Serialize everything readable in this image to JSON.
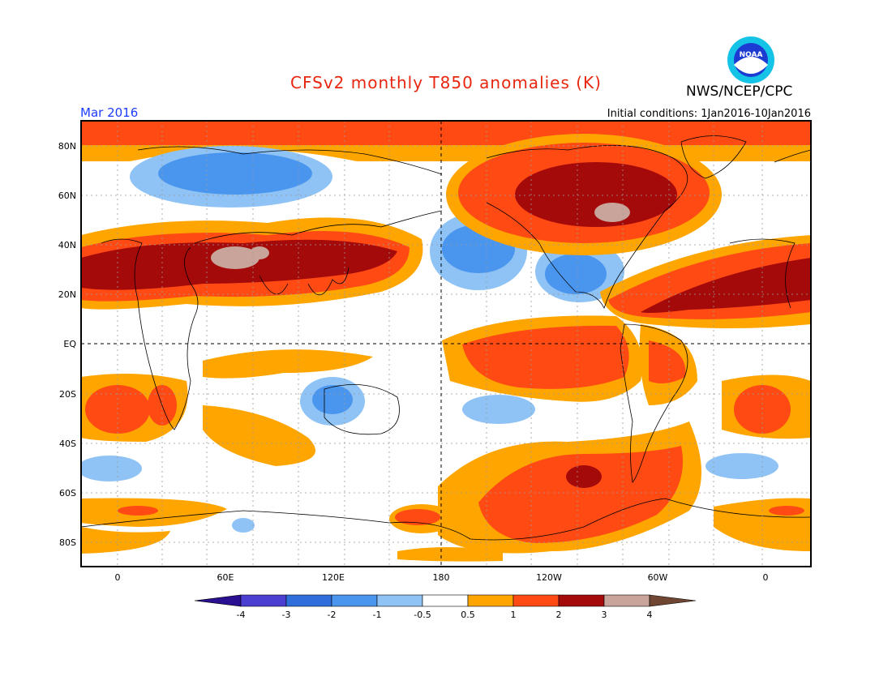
{
  "header": {
    "title": "CFSv2 monthly T850 anomalies (K)",
    "agency": "NWS/NCEP/CPC",
    "logo_text": "NOAA",
    "month": "Mar 2016",
    "initial_conditions": "Initial conditions: 1Jan2016-10Jan2016"
  },
  "axes": {
    "lat_labels": [
      "80N",
      "60N",
      "40N",
      "20N",
      "EQ",
      "20S",
      "40S",
      "60S",
      "80S"
    ],
    "lon_labels": [
      "0",
      "60E",
      "120E",
      "180",
      "120W",
      "60W",
      "0"
    ]
  },
  "colorbar": {
    "labels": [
      "-4",
      "-3",
      "-2",
      "-1",
      "-0.5",
      "0.5",
      "1",
      "2",
      "3",
      "4"
    ],
    "colors": [
      "#2a0f90",
      "#4a3fd0",
      "#2f6fdb",
      "#4a96ee",
      "#8fc3f5",
      "#ffffff",
      "#ffa500",
      "#ff4a14",
      "#a50a0a",
      "#c8a49a",
      "#6e4632"
    ]
  },
  "colors": {
    "title": "#e8260f",
    "month": "#1e3cff",
    "anomaly_orange": "#ffa500",
    "anomaly_red": "#ff4a14",
    "anomaly_darkred": "#a50a0a",
    "anomaly_tan": "#c8a49a",
    "anomaly_lightblue": "#8fc3f5",
    "anomaly_blue": "#4a96ee"
  }
}
